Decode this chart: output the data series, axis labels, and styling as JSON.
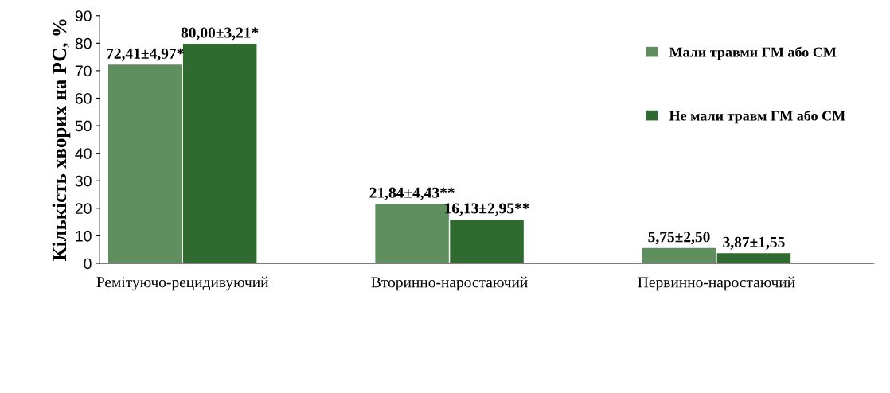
{
  "chart_data": {
    "type": "bar",
    "ylabel": "Кількість хворих на РС, %",
    "categories": [
      "Ремітуючо-рецидивуючий",
      "Вторинно-наростаючий",
      "Первинно-наростаючий"
    ],
    "series": [
      {
        "name": "Мали травми ГМ або СМ",
        "color": "#5f8f5f",
        "values": [
          72.41,
          21.84,
          5.75
        ],
        "value_labels": [
          "72,41±4,97*",
          "21,84±4,43**",
          "5,75±2,50"
        ]
      },
      {
        "name": "Не мали травм ГМ або СМ",
        "color": "#2f6b2f",
        "values": [
          80.0,
          16.13,
          3.87
        ],
        "value_labels": [
          "80,00±3,21*",
          "16,13±2,95**",
          "3,87±1,55"
        ]
      }
    ],
    "ylim": [
      0,
      90
    ],
    "yticks": [
      0,
      10,
      20,
      30,
      40,
      50,
      60,
      70,
      80,
      90
    ],
    "grid": false,
    "legend": "right"
  }
}
